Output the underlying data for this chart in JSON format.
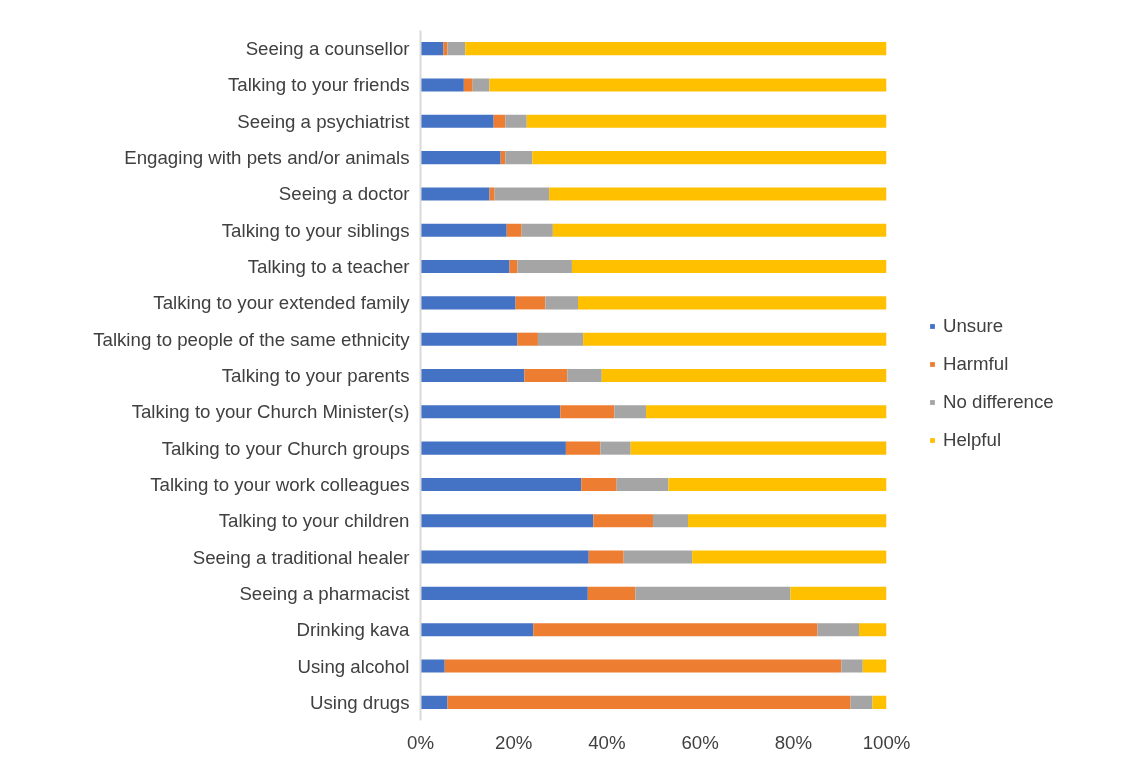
{
  "chart_data": {
    "type": "bar",
    "orientation": "horizontal",
    "stacked": true,
    "categories": [
      "Seeing a counsellor",
      "Talking to your friends",
      "Seeing a psychiatrist",
      "Engaging with pets and/or animals",
      "Seeing a doctor",
      "Talking to your siblings",
      "Talking to a teacher",
      "Talking to your extended family",
      "Talking to people of the same ethnicity",
      "Talking to your parents",
      "Talking to your Church Minister(s)",
      "Talking to your Church groups",
      "Talking to your work colleagues",
      "Talking to your children",
      "Seeing a traditional healer",
      "Seeing a pharmacist",
      "Drinking kava",
      "Using alcohol",
      "Using drugs"
    ],
    "series": [
      {
        "name": "Unsure",
        "color": "#4472c4",
        "values": [
          4.9,
          9.3,
          15.7,
          17.2,
          14.8,
          18.5,
          19.1,
          20.4,
          20.8,
          22.3,
          30.0,
          31.2,
          34.5,
          37.1,
          36.1,
          35.9,
          24.2,
          5.2,
          5.8
        ]
      },
      {
        "name": "Harmful",
        "color": "#ed7d31",
        "values": [
          0.9,
          1.9,
          2.5,
          1.0,
          1.1,
          3.2,
          1.7,
          6.4,
          4.4,
          9.2,
          11.6,
          7.4,
          7.6,
          12.8,
          7.5,
          10.2,
          61.0,
          85.1,
          86.5
        ]
      },
      {
        "name": "No difference",
        "color": "#a5a5a5",
        "values": [
          3.8,
          3.6,
          4.6,
          5.8,
          11.7,
          6.7,
          11.7,
          7.0,
          9.7,
          7.4,
          6.8,
          6.5,
          11.1,
          7.5,
          14.7,
          33.3,
          8.9,
          4.6,
          4.7
        ]
      },
      {
        "name": "Helpful",
        "color": "#ffc000",
        "values": [
          90.4,
          85.2,
          77.2,
          76.0,
          72.4,
          71.6,
          67.5,
          66.2,
          65.1,
          61.1,
          51.6,
          54.9,
          46.8,
          42.6,
          41.7,
          20.6,
          5.9,
          5.1,
          3.0
        ]
      }
    ],
    "xlim": [
      0,
      100
    ],
    "xticks": [
      {
        "value": 0,
        "label": "0%"
      },
      {
        "value": 20,
        "label": "20%"
      },
      {
        "value": 40,
        "label": "40%"
      },
      {
        "value": 60,
        "label": "60%"
      },
      {
        "value": 80,
        "label": "80%"
      },
      {
        "value": 100,
        "label": "100%"
      }
    ],
    "grid": false,
    "legend": "right"
  }
}
